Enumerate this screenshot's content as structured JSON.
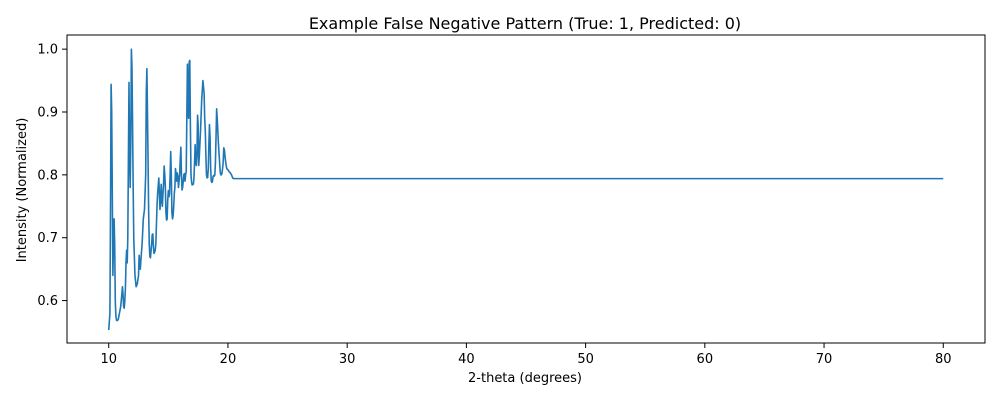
{
  "chart_data": {
    "type": "line",
    "title": "Example False Negative Pattern (True: 1, Predicted: 0)",
    "xlabel": "2-theta (degrees)",
    "ylabel": "Intensity (Normalized)",
    "xlim": [
      6.5,
      83.5
    ],
    "ylim": [
      0.5325,
      1.0225
    ],
    "x_ticks": [
      10,
      20,
      30,
      40,
      50,
      60,
      70,
      80
    ],
    "y_ticks": [
      0.6,
      0.7,
      0.8,
      0.9,
      1.0
    ],
    "y_tick_labels": [
      "0.6",
      "0.7",
      "0.8",
      "0.9",
      "1.0"
    ],
    "grid": false,
    "line_color": "#1f77b4",
    "series": [
      {
        "x": [
          10.0,
          10.1,
          10.15,
          10.2,
          10.25,
          10.3,
          10.35,
          10.4,
          10.45,
          10.5,
          10.55,
          10.6,
          10.65,
          10.7,
          10.8,
          10.9,
          11.0,
          11.1,
          11.15,
          11.2,
          11.25,
          11.3,
          11.35,
          11.4,
          11.45,
          11.5,
          11.55,
          11.6,
          11.7,
          11.75,
          11.8,
          11.85,
          11.9,
          11.95,
          12.0,
          12.05,
          12.1,
          12.2,
          12.3,
          12.4,
          12.5,
          12.55,
          12.6,
          12.65,
          12.7,
          12.8,
          12.9,
          13.0,
          13.1,
          13.15,
          13.2,
          13.25,
          13.3,
          13.35,
          13.4,
          13.45,
          13.5,
          13.6,
          13.65,
          13.7,
          13.75,
          13.8,
          13.85,
          13.9,
          13.95,
          14.0,
          14.05,
          14.1,
          14.2,
          14.25,
          14.3,
          14.35,
          14.4,
          14.45,
          14.5,
          14.55,
          14.6,
          14.65,
          14.7,
          14.75,
          14.8,
          14.85,
          14.9,
          14.95,
          15.0,
          15.05,
          15.1,
          15.15,
          15.2,
          15.25,
          15.3,
          15.35,
          15.4,
          15.45,
          15.5,
          15.55,
          15.6,
          15.65,
          15.7,
          15.75,
          15.8,
          15.85,
          15.9,
          15.95,
          16.0,
          16.05,
          16.1,
          16.15,
          16.2,
          16.25,
          16.3,
          16.35,
          16.4,
          16.45,
          16.5,
          16.55,
          16.6,
          16.65,
          16.7,
          16.75,
          16.8,
          16.85,
          16.9,
          16.95,
          17.0,
          17.05,
          17.1,
          17.15,
          17.2,
          17.25,
          17.3,
          17.35,
          17.4,
          17.45,
          17.5,
          17.55,
          17.6,
          17.7,
          17.8,
          17.9,
          18.0,
          18.05,
          18.1,
          18.15,
          18.2,
          18.25,
          18.3,
          18.35,
          18.4,
          18.45,
          18.5,
          18.55,
          18.6,
          18.65,
          18.7,
          18.75,
          18.8,
          18.85,
          18.9,
          18.95,
          19.0,
          19.05,
          19.1,
          19.2,
          19.3,
          19.35,
          19.4,
          19.45,
          19.5,
          19.55,
          19.6,
          19.65,
          19.7,
          19.75,
          19.8,
          19.85,
          19.9,
          20.0,
          20.1,
          20.2,
          20.3,
          20.4,
          20.5,
          20.55,
          20.6,
          20.65,
          20.7,
          20.75,
          20.8,
          20.85,
          20.9,
          20.95,
          21.0,
          21.05,
          21.1,
          21.15,
          21.2,
          21.25,
          21.3,
          21.35,
          21.4,
          21.45,
          21.5,
          21.55,
          21.6,
          21.65,
          21.7,
          21.75,
          21.8,
          21.85,
          21.9,
          22.0,
          25.0,
          30.0,
          40.0,
          50.0,
          60.0,
          70.0,
          80.0
        ],
        "y": [
          0.553,
          0.58,
          0.75,
          0.944,
          0.9,
          0.77,
          0.64,
          0.7,
          0.73,
          0.69,
          0.6,
          0.575,
          0.569,
          0.568,
          0.57,
          0.58,
          0.59,
          0.61,
          0.622,
          0.61,
          0.59,
          0.588,
          0.6,
          0.62,
          0.66,
          0.68,
          0.66,
          0.7,
          0.947,
          0.83,
          0.78,
          0.85,
          1.0,
          0.97,
          0.88,
          0.78,
          0.7,
          0.64,
          0.622,
          0.627,
          0.64,
          0.672,
          0.66,
          0.65,
          0.665,
          0.69,
          0.73,
          0.745,
          0.8,
          0.93,
          0.969,
          0.9,
          0.82,
          0.74,
          0.69,
          0.67,
          0.668,
          0.69,
          0.705,
          0.706,
          0.685,
          0.675,
          0.677,
          0.68,
          0.69,
          0.72,
          0.75,
          0.77,
          0.795,
          0.77,
          0.745,
          0.76,
          0.785,
          0.76,
          0.75,
          0.77,
          0.786,
          0.814,
          0.8,
          0.78,
          0.74,
          0.728,
          0.73,
          0.76,
          0.775,
          0.765,
          0.77,
          0.8,
          0.837,
          0.8,
          0.74,
          0.73,
          0.735,
          0.75,
          0.77,
          0.78,
          0.81,
          0.8,
          0.79,
          0.803,
          0.798,
          0.78,
          0.79,
          0.8,
          0.825,
          0.844,
          0.8,
          0.776,
          0.78,
          0.79,
          0.8,
          0.802,
          0.79,
          0.8,
          0.805,
          0.89,
          0.976,
          0.9,
          0.89,
          0.98,
          0.982,
          0.88,
          0.8,
          0.788,
          0.784,
          0.785,
          0.785,
          0.795,
          0.82,
          0.848,
          0.82,
          0.815,
          0.83,
          0.895,
          0.88,
          0.815,
          0.83,
          0.87,
          0.92,
          0.95,
          0.93,
          0.89,
          0.87,
          0.83,
          0.8,
          0.795,
          0.796,
          0.81,
          0.848,
          0.88,
          0.86,
          0.81,
          0.79,
          0.788,
          0.79,
          0.797,
          0.799,
          0.798,
          0.8,
          0.82,
          0.86,
          0.905,
          0.89,
          0.85,
          0.82,
          0.805,
          0.8,
          0.8,
          0.803,
          0.81,
          0.82,
          0.843,
          0.84,
          0.83,
          0.822,
          0.815,
          0.81,
          0.808,
          0.805,
          0.803,
          0.8,
          0.795,
          0.794,
          0.794,
          0.794,
          0.794,
          0.794,
          0.794,
          0.794,
          0.794,
          0.794,
          0.794,
          0.794,
          0.794,
          0.794,
          0.794,
          0.794,
          0.794,
          0.794,
          0.794,
          0.794,
          0.794,
          0.794,
          0.794,
          0.794,
          0.794,
          0.794,
          0.794,
          0.794,
          0.794,
          0.794,
          0.794,
          0.794,
          0.794,
          0.794,
          0.794,
          0.794,
          0.794,
          0.794
        ]
      }
    ]
  }
}
